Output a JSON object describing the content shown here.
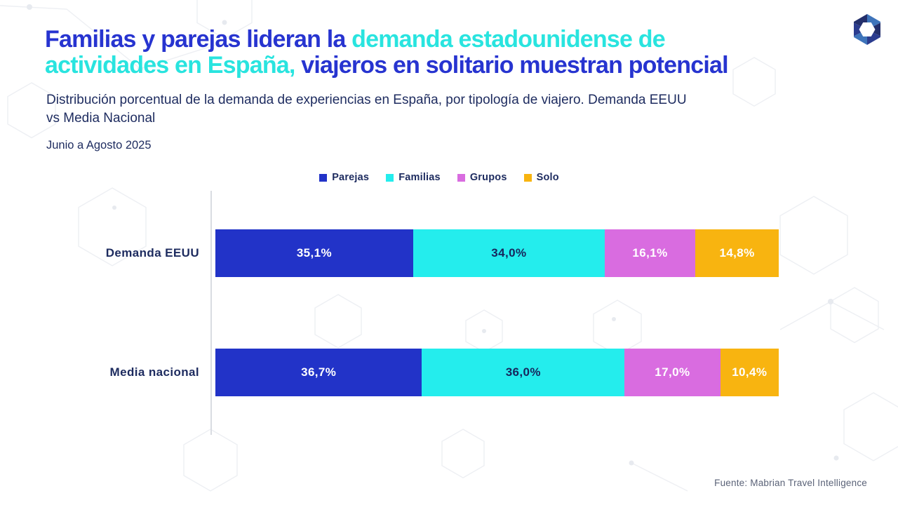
{
  "header": {
    "title_lines": [
      [
        {
          "text": "Familias y parejas lideran la ",
          "accent": "blue"
        },
        {
          "text": "demanda estadounidense de",
          "accent": "cyan"
        }
      ],
      [
        {
          "text": "actividades en España,",
          "accent": "cyan"
        },
        {
          "text": " viajeros en solitario muestran potencial",
          "accent": "blue"
        }
      ]
    ],
    "subtitle_lines": [
      "Distribución porcentual de la demanda de experiencias en España, por tipología de viajero. Demanda EEUU",
      "vs Media Nacional"
    ],
    "period": "Junio a Agosto 2025"
  },
  "colors": {
    "title_blue": "#2734D0",
    "title_cyan": "#29E4DF",
    "text_navy": "#1D2B5F",
    "axis_gray": "#D9DCE2"
  },
  "chart_data": {
    "type": "bar",
    "variant": "horizontal-stacked",
    "title": "Distribución porcentual de la demanda de experiencias en España, por tipología de viajero. Demanda EEUU vs Media Nacional",
    "categories": [
      "Demanda EEUU",
      "Media nacional"
    ],
    "series": [
      {
        "name": "Parejas",
        "color": "#2233C8",
        "text_color": "#FFFFFF",
        "values": [
          35.1,
          36.7
        ],
        "labels": [
          "35,1%",
          "36,7%"
        ]
      },
      {
        "name": "Familias",
        "color": "#24EDED",
        "text_color": "#17265C",
        "values": [
          34.0,
          36.0
        ],
        "labels": [
          "34,0%",
          "36,0%"
        ]
      },
      {
        "name": "Grupos",
        "color": "#D96CE0",
        "text_color": "#FFFFFF",
        "values": [
          16.1,
          17.0
        ],
        "labels": [
          "16,1%",
          "17,0%"
        ]
      },
      {
        "name": "Solo",
        "color": "#F8B410",
        "text_color": "#FFFFFF",
        "values": [
          14.8,
          10.4
        ],
        "labels": [
          "14,8%",
          "10,4%"
        ]
      }
    ],
    "xlim": [
      0,
      100
    ],
    "grid": false,
    "legend_position": "top-center"
  },
  "footer": {
    "source": "Fuente: Mabrian Travel Intelligence"
  },
  "logo": {
    "icon": "mabrian-hexagon-logo"
  }
}
